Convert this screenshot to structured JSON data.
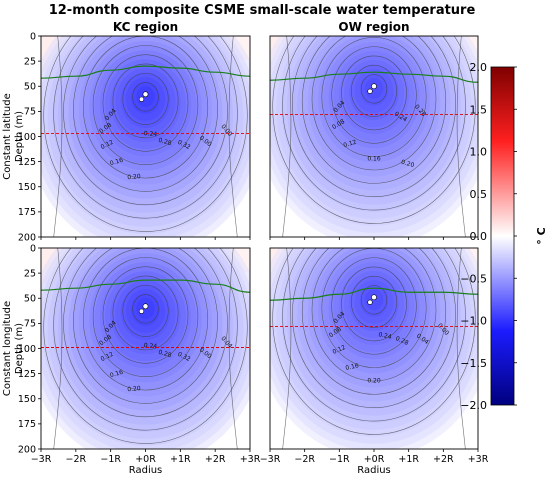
{
  "figure": {
    "title": "12-month composite CSME small-scale water temperature"
  },
  "colors": {
    "cold_max": "#00007f",
    "cold": "#1c1cff",
    "neutral": "#ffffff",
    "warm": "#ff2020",
    "warm_max": "#7f0000",
    "mld_line": "#1a7f1a",
    "isotherm_line": "#e00000",
    "contour_line": "#404040"
  },
  "chart_data": [
    {
      "type": "heatmap",
      "title": "KC region",
      "ylabel": "Constant latitude\nDepth (m)",
      "xlabel": "",
      "x_ticks": [
        "−3R",
        "−2R",
        "−1R",
        "+0R",
        "+1R",
        "+2R",
        "+3R"
      ],
      "y_ticks": [
        0,
        25,
        50,
        75,
        100,
        125,
        150,
        175,
        200
      ],
      "ylim": [
        200,
        0
      ],
      "contour_labels": [
        "0.04",
        "0.08",
        "0.12",
        "0.16",
        "0.20",
        "0.24",
        "0.28",
        "0.32",
        "0.00",
        "0.00"
      ],
      "min_anomaly_c": -1.2,
      "core_depth_m": 58
    },
    {
      "type": "heatmap",
      "title": "OW region",
      "x_ticks": [
        "−3R",
        "−2R",
        "−1R",
        "+0R",
        "+1R",
        "+2R",
        "+3R"
      ],
      "ylim": [
        200,
        0
      ],
      "contour_labels": [
        "0.04",
        "0.08",
        "0.12",
        "0.16",
        "0.20",
        "0.24",
        "0.28"
      ],
      "min_anomaly_c": -1.1,
      "core_depth_m": 50
    },
    {
      "type": "heatmap",
      "title": "",
      "ylabel": "Constant longitude\nDepth (m)",
      "xlabel": "Radius",
      "x_ticks": [
        "−3R",
        "−2R",
        "−1R",
        "+0R",
        "+1R",
        "+2R",
        "+3R"
      ],
      "y_ticks": [
        0,
        25,
        50,
        75,
        100,
        125,
        150,
        175,
        200
      ],
      "ylim": [
        200,
        0
      ],
      "contour_labels": [
        "0.04",
        "0.08",
        "0.12",
        "0.16",
        "0.20",
        "0.24",
        "0.28",
        "0.32",
        "0.00",
        "0.04"
      ],
      "min_anomaly_c": -1.2,
      "core_depth_m": 58
    },
    {
      "type": "heatmap",
      "title": "",
      "xlabel": "Radius",
      "x_ticks": [
        "−3R",
        "−2R",
        "−1R",
        "+0R",
        "+1R",
        "+2R",
        "+3R"
      ],
      "ylim": [
        200,
        0
      ],
      "contour_labels": [
        "0.04",
        "0.08",
        "0.12",
        "0.16",
        "0.20",
        "0.24",
        "0.28",
        "0.04",
        "0.00"
      ],
      "min_anomaly_c": -1.1,
      "core_depth_m": 49
    }
  ],
  "colorbar": {
    "label": "° C",
    "ticks": [
      "2.0",
      "1.5",
      "1.0",
      "0.5",
      "0.0",
      "−0.5",
      "−1.0",
      "−1.5",
      "−2.0"
    ],
    "range": [
      -2.0,
      2.0
    ]
  }
}
